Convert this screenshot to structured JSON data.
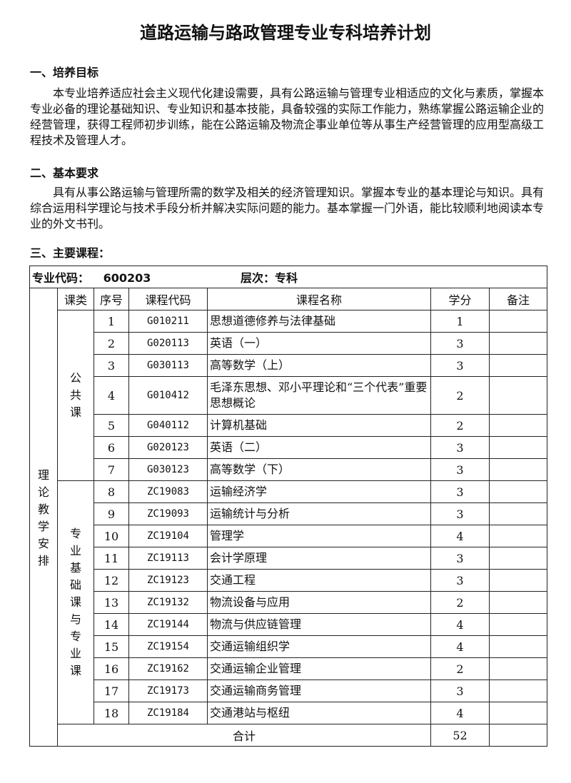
{
  "title": "道路运输与路政管理专业专科培养计划",
  "sections": [
    {
      "heading": "一、培养目标",
      "text": "本专业培养适应社会主义现代化建设需要，具有公路运输与管理专业相适应的文化与素质，掌握本专业必备的理论基础知识、专业知识和基本技能，具备较强的实际工作能力，熟练掌握公路运输企业的经营管理，获得工程师初步训练，能在公路运输及物流企事业单位等从事生产经营管理的应用型高级工程技术及管理人才。"
    },
    {
      "heading": "二、基本要求",
      "text": "具有从事公路运输与管理所需的数学及相关的经济管理知识。掌握本专业的基本理论与知识。具有综合运用科学理论与技术手段分析并解决实际问题的能力。基本掌握一门外语，能比较顺利地阅读本专业的外文书刊。"
    },
    {
      "heading": "三、主要课程："
    }
  ],
  "table": {
    "major_code_label": "专业代码：",
    "major_code": "600203",
    "level_label": "层次：专科",
    "section_label": "理论教学安排",
    "headers": [
      "课类",
      "序号",
      "课程代码",
      "课程名称",
      "学分",
      "备注"
    ],
    "groups": [
      {
        "label": "公共课",
        "rows": [
          [
            "1",
            "G010211",
            "思想道德修养与法律基础",
            "1"
          ],
          [
            "2",
            "G020113",
            "英语（一）",
            "3"
          ],
          [
            "3",
            "G030113",
            "高等数学（上）",
            "3"
          ],
          [
            "4",
            "G010412",
            "毛泽东思想、邓小平理论和“三个代表”重要思想概论",
            "2"
          ],
          [
            "5",
            "G040112",
            "计算机基础",
            "2"
          ],
          [
            "6",
            "G020123",
            "英语（二）",
            "3"
          ],
          [
            "7",
            "G030123",
            "高等数学（下）",
            "3"
          ]
        ]
      },
      {
        "label": "专业基础课与专业课",
        "rows": [
          [
            "8",
            "ZC19083",
            "运输经济学",
            "3"
          ],
          [
            "9",
            "ZC19093",
            "运输统计与分析",
            "3"
          ],
          [
            "10",
            "ZC19104",
            "管理学",
            "4"
          ],
          [
            "11",
            "ZC19113",
            "会计学原理",
            "3"
          ],
          [
            "12",
            "ZC19123",
            "交通工程",
            "3"
          ],
          [
            "13",
            "ZC19132",
            "物流设备与应用",
            "2"
          ],
          [
            "14",
            "ZC19144",
            "物流与供应链管理",
            "4"
          ],
          [
            "15",
            "ZC19154",
            "交通运输组织学",
            "4"
          ],
          [
            "16",
            "ZC19162",
            "交通运输企业管理",
            "2"
          ],
          [
            "17",
            "ZC19173",
            "交通运输商务管理",
            "3"
          ],
          [
            "18",
            "ZC19184",
            "交通港站与枢纽",
            "4"
          ]
        ]
      }
    ],
    "total_label": "合计",
    "total_credits": "52"
  }
}
